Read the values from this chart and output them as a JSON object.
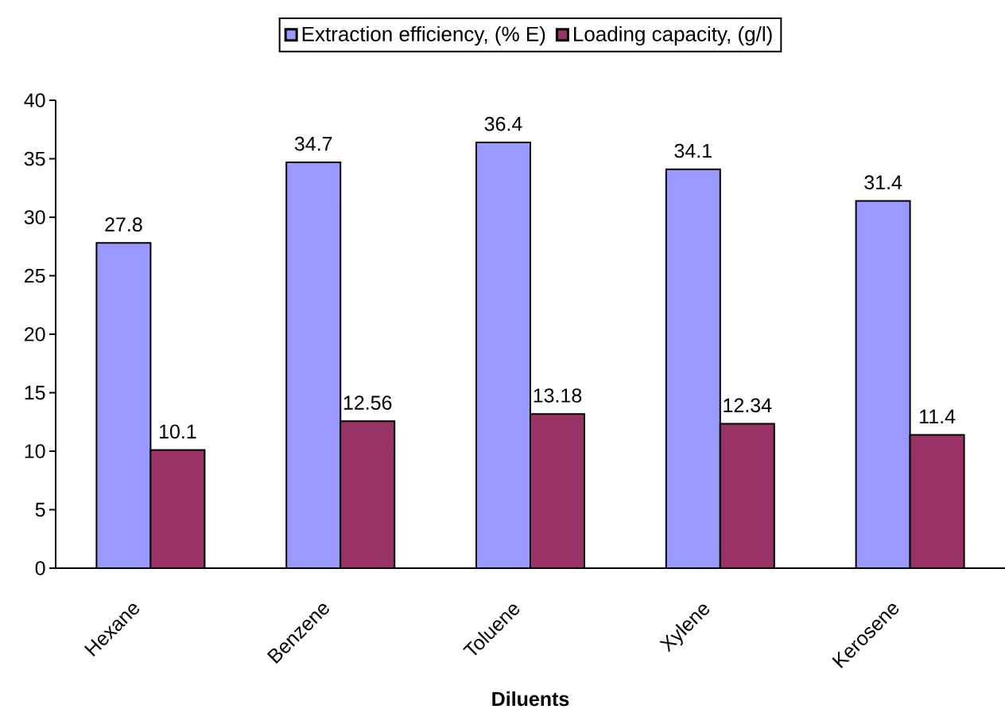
{
  "chart_data": {
    "type": "bar",
    "xlabel": "Diluents",
    "categories": [
      "Hexane",
      "Benzene",
      "Toluene",
      "Xylene",
      "Kerosene"
    ],
    "series": [
      {
        "name": "Extraction efficiency, (% E)",
        "color": "#9999ff",
        "values": [
          27.8,
          34.7,
          36.4,
          34.1,
          31.4
        ]
      },
      {
        "name": "Loading capacity, (g/l)",
        "color": "#993366",
        "values": [
          10.1,
          12.56,
          13.18,
          12.34,
          11.4
        ]
      }
    ],
    "ylim": [
      0,
      40
    ],
    "yticks": [
      0,
      5,
      10,
      15,
      20,
      25,
      30,
      35,
      40
    ],
    "data_labels": true,
    "legend": "top"
  }
}
